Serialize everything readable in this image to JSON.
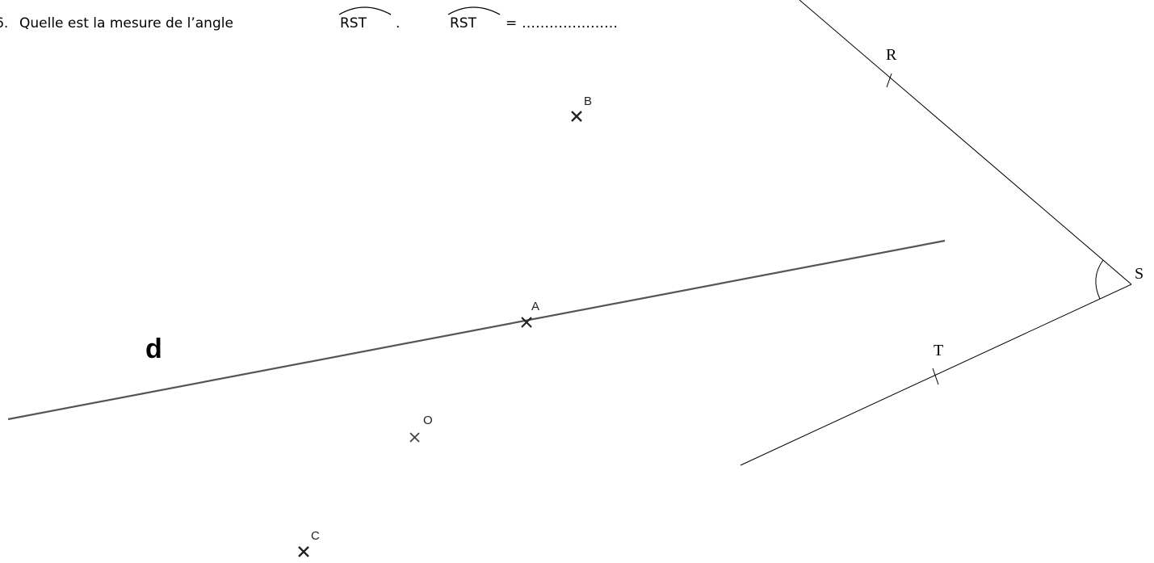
{
  "question": {
    "number": "6.",
    "prompt": "Quelle est la mesure de l’angle",
    "angle_name": "RST",
    "period": ".",
    "answer_angle_name": "RST",
    "equals": "=",
    "answer_blank": "…………………"
  },
  "angle": {
    "vertex": "S",
    "points": [
      "R",
      "T"
    ]
  },
  "line_label": "d",
  "points": [
    {
      "id": "A",
      "label": "A"
    },
    {
      "id": "B",
      "label": "B"
    },
    {
      "id": "O",
      "label": "O"
    },
    {
      "id": "C",
      "label": "C"
    }
  ],
  "colors": {
    "ink": "#000000",
    "line_d": "#555555",
    "cross": "#333333"
  }
}
